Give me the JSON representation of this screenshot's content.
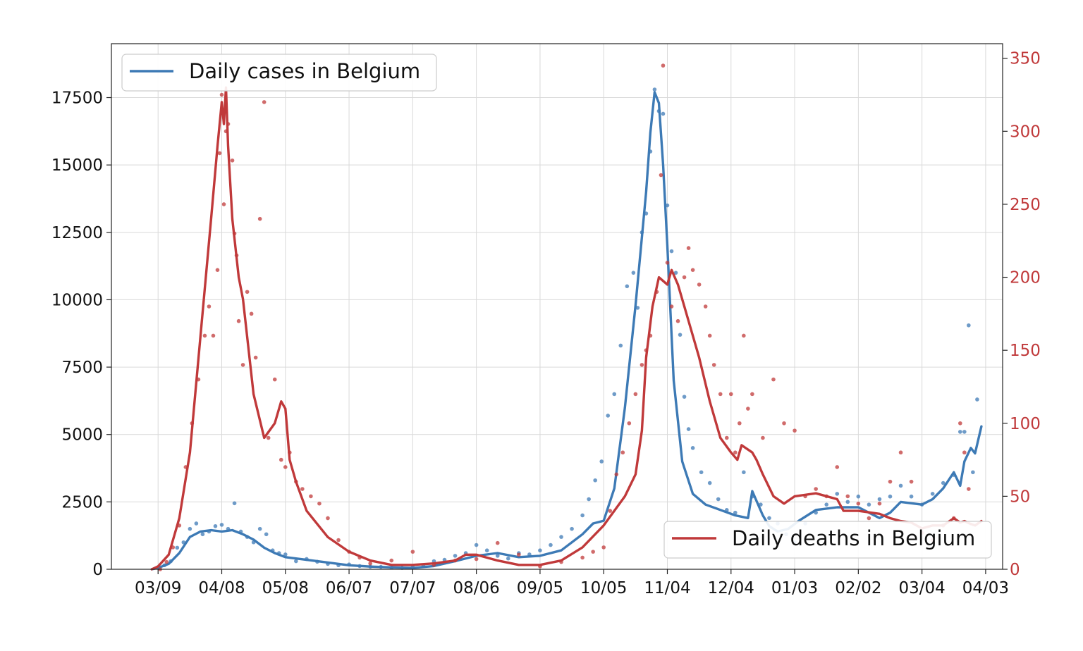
{
  "chart_data": {
    "type": "line",
    "x_tick_labels": [
      "03/09",
      "04/08",
      "05/08",
      "06/07",
      "07/07",
      "08/06",
      "09/05",
      "10/05",
      "11/04",
      "12/04",
      "01/03",
      "02/02",
      "03/04",
      "04/03"
    ],
    "x_tick_days": [
      0,
      30,
      60,
      90,
      120,
      150,
      180,
      210,
      240,
      270,
      300,
      330,
      360,
      390
    ],
    "xlim_days": [
      -22,
      398
    ],
    "left_axis": {
      "ylim": [
        0,
        19500
      ],
      "ticks": [
        0,
        2500,
        5000,
        7500,
        10000,
        12500,
        15000,
        17500
      ],
      "tick_labels": [
        "0",
        "2500",
        "5000",
        "7500",
        "10000",
        "12500",
        "15000",
        "17500"
      ]
    },
    "right_axis": {
      "ylim": [
        0,
        360
      ],
      "ticks": [
        0,
        50,
        100,
        150,
        200,
        250,
        300,
        350
      ],
      "tick_labels": [
        "0",
        "50",
        "100",
        "150",
        "200",
        "250",
        "300",
        "350"
      ],
      "color": "#c0393a"
    },
    "grid": true,
    "series": [
      {
        "name": "Daily cases in Belgium",
        "axis": "left",
        "color": "#3d7ab5",
        "smoothed": {
          "day": [
            -3,
            0,
            5,
            10,
            15,
            20,
            25,
            30,
            35,
            40,
            45,
            50,
            55,
            60,
            70,
            80,
            90,
            100,
            110,
            120,
            130,
            140,
            150,
            160,
            170,
            180,
            190,
            200,
            205,
            210,
            215,
            220,
            225,
            230,
            232,
            234,
            236,
            238,
            240,
            243,
            247,
            252,
            258,
            265,
            272,
            278,
            280,
            285,
            288,
            292,
            297,
            302,
            310,
            320,
            330,
            340,
            345,
            350,
            360,
            365,
            370,
            375,
            378,
            380,
            383,
            385,
            388
          ],
          "value": [
            0,
            50,
            200,
            600,
            1200,
            1400,
            1450,
            1400,
            1450,
            1300,
            1100,
            800,
            600,
            450,
            350,
            250,
            150,
            100,
            70,
            50,
            120,
            300,
            500,
            600,
            450,
            500,
            700,
            1300,
            1700,
            1800,
            3000,
            6000,
            9800,
            14000,
            16200,
            17700,
            17300,
            15000,
            12000,
            7000,
            4000,
            2800,
            2400,
            2200,
            2000,
            1900,
            2900,
            2000,
            1600,
            1400,
            1500,
            1800,
            2200,
            2300,
            2300,
            1900,
            2100,
            2500,
            2400,
            2600,
            3000,
            3600,
            3100,
            4000,
            4500,
            4300,
            5300
          ]
        },
        "daily": {
          "day": [
            0,
            3,
            6,
            9,
            12,
            15,
            18,
            21,
            24,
            27,
            30,
            33,
            36,
            39,
            42,
            45,
            48,
            51,
            54,
            57,
            60,
            65,
            70,
            75,
            80,
            85,
            90,
            95,
            100,
            105,
            110,
            115,
            120,
            125,
            130,
            135,
            140,
            145,
            150,
            155,
            160,
            165,
            170,
            175,
            180,
            185,
            190,
            195,
            200,
            203,
            206,
            209,
            212,
            215,
            218,
            221,
            224,
            226,
            228,
            230,
            232,
            234,
            236,
            238,
            240,
            242,
            244,
            246,
            248,
            250,
            252,
            256,
            260,
            264,
            268,
            272,
            276,
            280,
            284,
            288,
            292,
            296,
            300,
            305,
            310,
            315,
            320,
            325,
            330,
            335,
            340,
            345,
            350,
            355,
            360,
            365,
            370,
            375,
            378,
            380,
            382,
            384,
            386
          ],
          "value": [
            80,
            150,
            300,
            800,
            1000,
            1500,
            1700,
            1300,
            1400,
            1600,
            1650,
            1500,
            2450,
            1400,
            1200,
            1000,
            1500,
            1300,
            700,
            600,
            550,
            300,
            380,
            280,
            200,
            150,
            180,
            120,
            100,
            90,
            60,
            50,
            80,
            150,
            300,
            350,
            500,
            600,
            900,
            700,
            500,
            400,
            600,
            550,
            700,
            900,
            1200,
            1500,
            2000,
            2600,
            3300,
            4000,
            5700,
            6500,
            8300,
            10500,
            11000,
            9700,
            12500,
            13200,
            15500,
            17800,
            17000,
            16900,
            13500,
            11800,
            11000,
            8700,
            6400,
            5200,
            4500,
            3600,
            3200,
            2600,
            2200,
            2100,
            3600,
            2700,
            2400,
            1900,
            1700,
            1300,
            1000,
            1700,
            2100,
            2400,
            2800,
            2500,
            2700,
            2400,
            2600,
            2700,
            3100,
            2700,
            2400,
            2800,
            3200,
            3500,
            5100,
            5100,
            9050,
            3600,
            6300
          ]
        }
      },
      {
        "name": "Daily deaths in Belgium",
        "axis": "right",
        "color": "#c0393a",
        "smoothed": {
          "day": [
            -3,
            0,
            5,
            10,
            15,
            20,
            25,
            28,
            30,
            31,
            32,
            33,
            34,
            35,
            38,
            40,
            45,
            50,
            55,
            58,
            60,
            62,
            65,
            70,
            80,
            90,
            100,
            110,
            120,
            130,
            140,
            145,
            150,
            160,
            170,
            180,
            190,
            200,
            210,
            220,
            225,
            228,
            230,
            233,
            236,
            240,
            242,
            245,
            248,
            250,
            255,
            260,
            265,
            270,
            273,
            275,
            280,
            282,
            285,
            290,
            295,
            300,
            310,
            320,
            323,
            330,
            340,
            345,
            350,
            355,
            360,
            365,
            370,
            375,
            378,
            380,
            383,
            385,
            388
          ],
          "value": [
            0,
            2,
            10,
            35,
            80,
            160,
            240,
            290,
            320,
            305,
            330,
            290,
            265,
            240,
            200,
            185,
            120,
            90,
            100,
            115,
            110,
            75,
            60,
            40,
            22,
            12,
            6,
            3,
            3,
            4,
            6,
            10,
            10,
            6,
            3,
            3,
            6,
            15,
            30,
            50,
            65,
            95,
            145,
            180,
            200,
            195,
            205,
            195,
            180,
            170,
            145,
            115,
            90,
            80,
            75,
            85,
            80,
            75,
            65,
            50,
            45,
            50,
            52,
            48,
            40,
            40,
            38,
            35,
            33,
            32,
            28,
            30,
            30,
            35,
            32,
            33,
            31,
            30,
            33
          ]
        },
        "daily": {
          "day": [
            1,
            4,
            7,
            10,
            13,
            16,
            19,
            22,
            24,
            26,
            28,
            29,
            30,
            31,
            32,
            33,
            35,
            36,
            37,
            38,
            40,
            42,
            44,
            46,
            48,
            50,
            52,
            55,
            58,
            60,
            62,
            65,
            68,
            72,
            76,
            80,
            85,
            90,
            95,
            100,
            110,
            120,
            130,
            140,
            150,
            160,
            170,
            180,
            190,
            200,
            205,
            210,
            213,
            216,
            219,
            222,
            225,
            228,
            230,
            232,
            235,
            237,
            238,
            240,
            242,
            245,
            248,
            250,
            252,
            255,
            258,
            260,
            262,
            265,
            268,
            270,
            272,
            274,
            276,
            278,
            280,
            285,
            290,
            295,
            300,
            305,
            310,
            315,
            320,
            325,
            330,
            335,
            340,
            345,
            350,
            355,
            360,
            365,
            370,
            375,
            378,
            380,
            382
          ],
          "value": [
            0,
            5,
            15,
            30,
            70,
            100,
            130,
            160,
            180,
            160,
            205,
            285,
            325,
            250,
            300,
            305,
            280,
            230,
            215,
            170,
            140,
            190,
            175,
            145,
            240,
            320,
            90,
            130,
            75,
            70,
            80,
            60,
            55,
            50,
            45,
            35,
            20,
            12,
            8,
            4,
            6,
            12,
            3,
            6,
            7,
            18,
            10,
            2,
            5,
            8,
            12,
            15,
            40,
            65,
            80,
            100,
            120,
            140,
            150,
            160,
            190,
            270,
            345,
            210,
            180,
            170,
            200,
            220,
            205,
            195,
            180,
            160,
            140,
            120,
            90,
            120,
            80,
            100,
            160,
            110,
            120,
            90,
            130,
            100,
            95,
            50,
            55,
            50,
            70,
            50,
            45,
            35,
            45,
            60,
            80,
            60,
            25,
            20,
            30,
            35,
            100,
            80,
            55
          ]
        }
      }
    ],
    "legends": [
      {
        "label": "Daily cases in Belgium",
        "placement": "upper-left",
        "color": "#3d7ab5"
      },
      {
        "label": "Daily deaths in Belgium",
        "placement": "lower-right",
        "color": "#c0393a"
      }
    ]
  }
}
